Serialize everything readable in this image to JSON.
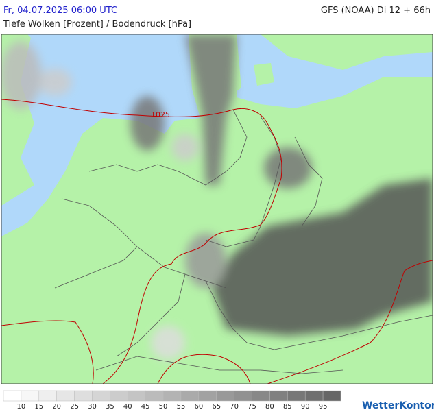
{
  "header": {
    "datetime": "Fr, 04.07.2025 06:00 UTC",
    "model": "GFS (NOAA) Di 12 + 66h",
    "subtitle": "Tiefe Wolken [Prozent] / Bodendruck [hPa]"
  },
  "map": {
    "isobar_label": "1025"
  },
  "legend": {
    "labels": [
      10,
      15,
      20,
      25,
      30,
      35,
      40,
      45,
      50,
      55,
      60,
      65,
      70,
      75,
      80,
      85,
      90,
      95
    ],
    "colors": [
      "#ffffff",
      "#f7f7f7",
      "#efefef",
      "#e6e6e6",
      "#dedede",
      "#d5d5d5",
      "#cccccc",
      "#c4c4c4",
      "#bbbbbb",
      "#b3b3b3",
      "#aaaaaa",
      "#a2a2a2",
      "#999999",
      "#919191",
      "#888888",
      "#808080",
      "#777777",
      "#6f6f6f",
      "#666666"
    ]
  },
  "logo": "WetterKontor"
}
